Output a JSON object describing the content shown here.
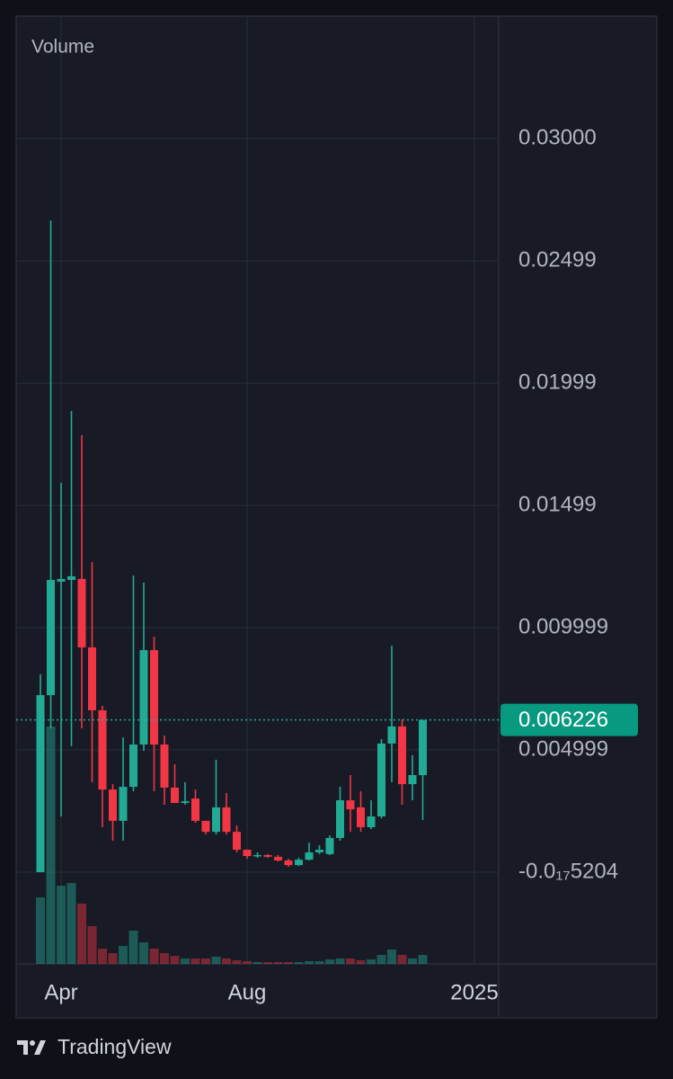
{
  "chart_data": {
    "type": "candlestick",
    "title": "Volume",
    "brand": "TradingView",
    "up_color": "#22ab94",
    "down_color": "#f23645",
    "grid": true,
    "categories": [
      null,
      null,
      "Apr",
      null,
      null,
      null,
      null,
      null,
      null,
      null,
      null,
      null,
      null,
      null,
      null,
      null,
      null,
      null,
      null,
      null,
      "Aug",
      null,
      null,
      null,
      null,
      null,
      null,
      null,
      null,
      null,
      null,
      null,
      null,
      null,
      null,
      null,
      null,
      null,
      null,
      null,
      null,
      null,
      "2025",
      null,
      null
    ],
    "open": [
      0,
      0.00724,
      0.01188,
      0.01195,
      0.01199,
      0.00919,
      0.00662,
      0.00338,
      0.0021,
      0.00349,
      0.00522,
      0.00908,
      0.00522,
      0.00346,
      0.00283,
      0.00301,
      0.0021,
      0.00165,
      0.00265,
      0.00165,
      0.00092,
      0.00066,
      0.0007,
      0.00063,
      0.00048,
      0.00029,
      0.00051,
      0.00081,
      0.00074,
      0.0014,
      0.00294,
      0.00265,
      0.00184,
      0.00228,
      0.00526,
      0.00596,
      0.0036,
      0.00397,
      null,
      null,
      null,
      null,
      null,
      null,
      null
    ],
    "high": [
      0.00809,
      0.02665,
      0.01592,
      0.01886,
      0.01787,
      0.01268,
      0.0068,
      0.0036,
      0.00551,
      0.01213,
      0.01184,
      0.00963,
      0.00559,
      0.00441,
      0.00368,
      0.00338,
      0.0021,
      0.0046,
      0.00324,
      0.00191,
      0.00092,
      0.00081,
      0.00074,
      0.0007,
      0.00055,
      0.00059,
      0.00121,
      0.0011,
      0.00151,
      0.00349,
      0.00397,
      0.00331,
      0.00294,
      0.00544,
      0.00926,
      0.00625,
      0.00478,
      0.006226,
      null,
      null,
      null,
      null,
      null,
      null,
      null
    ],
    "low": [
      0,
      0.00588,
      0.00228,
      0.00515,
      0.00588,
      0.00368,
      0.00184,
      0.00129,
      0.00129,
      0.00331,
      0.00496,
      0.00331,
      0.00276,
      0.00283,
      0.00276,
      0.00202,
      0.00154,
      0.00154,
      0.00154,
      0.00081,
      0.00055,
      0.00059,
      0.00059,
      0.00044,
      0.00022,
      0.00026,
      0.00048,
      0.00074,
      0.0007,
      0.00129,
      0.00165,
      0.00165,
      0.00176,
      0.0022,
      0.00368,
      0.00276,
      0.00294,
      0.00213,
      null,
      null,
      null,
      null,
      null,
      null,
      null
    ],
    "close": [
      0.00724,
      0.01195,
      0.01199,
      0.0121,
      0.00919,
      0.00662,
      0.00338,
      0.0021,
      0.00349,
      0.00522,
      0.00908,
      0.00522,
      0.00346,
      0.00283,
      0.0029,
      0.0021,
      0.00165,
      0.00265,
      0.00165,
      0.00092,
      0.00066,
      0.0007,
      0.00063,
      0.00048,
      0.00029,
      0.00051,
      0.00081,
      0.00092,
      0.0014,
      0.00294,
      0.00257,
      0.00184,
      0.00228,
      0.00526,
      0.00596,
      0.0036,
      0.00397,
      0.006226,
      null,
      null,
      null,
      null,
      null,
      null,
      null
    ],
    "volume": [
      74,
      264,
      87,
      90,
      67,
      42,
      17,
      12,
      20,
      37,
      24,
      17,
      12,
      9,
      6,
      6,
      6,
      8,
      6,
      4,
      3,
      2,
      2,
      2,
      2,
      2,
      3,
      3,
      5,
      6,
      6,
      4,
      5,
      10,
      16,
      10,
      6,
      10,
      null,
      null,
      null,
      null,
      null,
      null,
      null
    ],
    "volume_ylim": [
      0,
      280
    ],
    "last_price": 0.006226,
    "ylim": [
      -0.00375,
      0.035
    ],
    "yticks": [
      {
        "value": 0.03,
        "label": "0.03000"
      },
      0.02499,
      0.01999,
      0.01499,
      0.009999,
      0.004999,
      {
        "value": -5.204e-19,
        "label": "-0.0₁₇5204"
      }
    ]
  }
}
